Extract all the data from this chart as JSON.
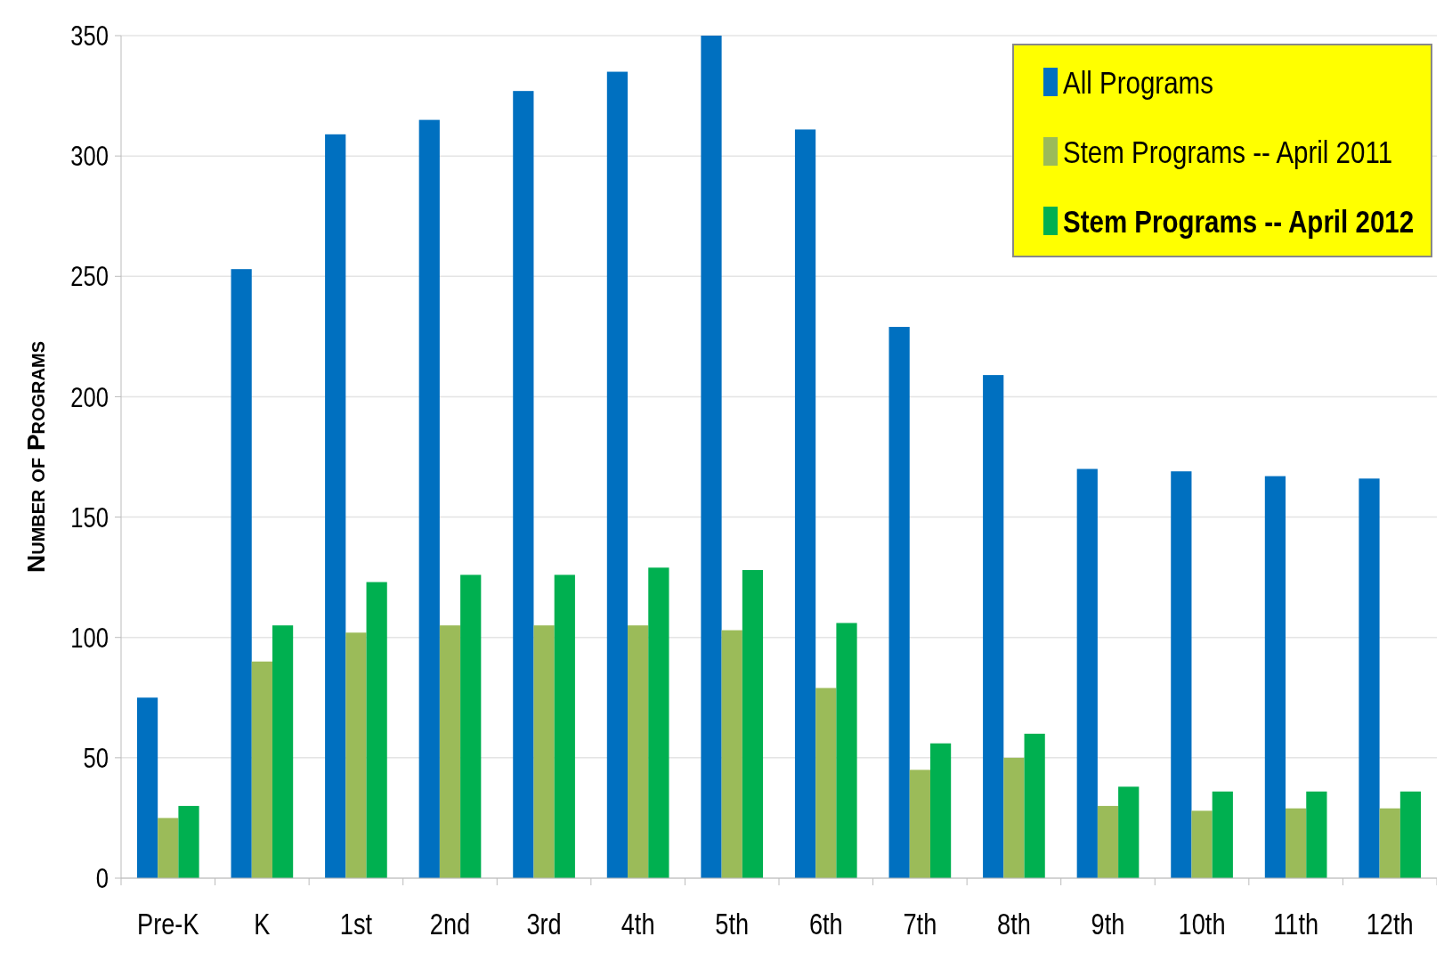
{
  "chart_data": {
    "type": "bar",
    "ylabel": "Number of Programs",
    "categories": [
      "Pre-K",
      "K",
      "1st",
      "2nd",
      "3rd",
      "4th",
      "5th",
      "6th",
      "7th",
      "8th",
      "9th",
      "10th",
      "11th",
      "12th"
    ],
    "series": [
      {
        "name": "All Programs",
        "color": "#0070c0",
        "values": [
          75,
          253,
          309,
          315,
          327,
          335,
          350,
          311,
          229,
          209,
          170,
          169,
          167,
          166
        ]
      },
      {
        "name": "Stem Programs -- April 2011",
        "color": "#9bbb59",
        "values": [
          25,
          90,
          102,
          105,
          105,
          105,
          103,
          79,
          45,
          50,
          30,
          28,
          29,
          29
        ]
      },
      {
        "name": "Stem Programs -- April 2012",
        "color": "#00b050",
        "values": [
          30,
          105,
          123,
          126,
          126,
          129,
          128,
          106,
          56,
          60,
          38,
          36,
          36,
          36
        ]
      }
    ],
    "ylim": [
      0,
      350
    ],
    "yticks": [
      0,
      50,
      100,
      150,
      200,
      250,
      300,
      350
    ],
    "grid": "y",
    "legend": "top right"
  }
}
